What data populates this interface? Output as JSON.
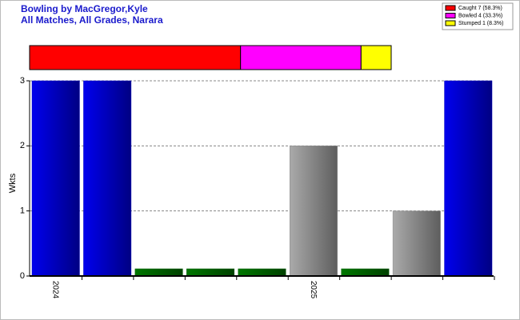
{
  "chart_data": [
    {
      "type": "stacked-bar",
      "series": [
        {
          "name": "Caught 7 (58.3%)",
          "color": "#ff0000",
          "values": [
            7
          ]
        },
        {
          "name": "Bowled 4 (33.3%)",
          "color": "#ff00ff",
          "values": [
            4
          ]
        },
        {
          "name": "Stumped 1 (8.3%)",
          "color": "#ffff00",
          "values": [
            1
          ]
        }
      ]
    },
    {
      "type": "bar",
      "title": "Bowling by MacGregor,Kyle",
      "subtitle": "All Matches, All Grades, Narara",
      "ylabel": "Wkts",
      "categories": [
        "2024",
        null,
        null,
        null,
        null,
        "2025",
        null,
        null,
        null
      ],
      "values": [
        3,
        3,
        0,
        0,
        0,
        2,
        0,
        1,
        3
      ],
      "colors": [
        "#0000ee",
        "#0000ee",
        "#007700",
        "#007700",
        "#007700",
        "#aaaaaa",
        "#007700",
        "#aaaaaa",
        "#0000ee"
      ],
      "ylim": [
        0,
        3
      ],
      "yticks": [
        0,
        1,
        2,
        3
      ],
      "grid": true
    }
  ]
}
